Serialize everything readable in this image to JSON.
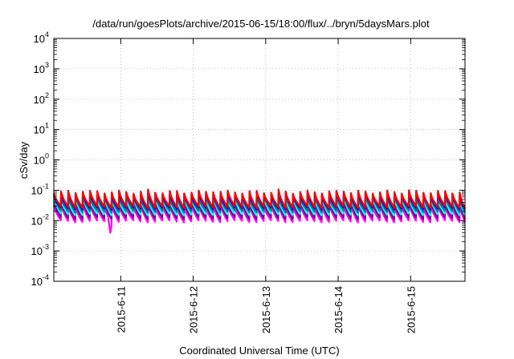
{
  "chart_data": {
    "type": "line",
    "title": "/data/run/goesPlots/archive/2015-06-15/18:00/flux/../bryn/5daysMars.plot",
    "xlabel": "Coordinated Universal Time (UTC)",
    "ylabel": "cSv/day",
    "xlim": [
      "2015-06-10T01:50",
      "2015-06-15T18:00"
    ],
    "ylim": [
      0.0001,
      10000
    ],
    "yscale": "log",
    "grid": true,
    "x_ticks": [
      {
        "label": "2015-6-11",
        "x": "2015-06-11T00:00"
      },
      {
        "label": "2015-6-12",
        "x": "2015-06-12T00:00"
      },
      {
        "label": "2015-6-13",
        "x": "2015-06-13T00:00"
      },
      {
        "label": "2015-6-14",
        "x": "2015-06-14T00:00"
      },
      {
        "label": "2015-6-15",
        "x": "2015-06-15T00:00"
      }
    ],
    "y_ticks": [
      {
        "value": 0.0001,
        "base": "10",
        "exp": "-4"
      },
      {
        "value": 0.001,
        "base": "10",
        "exp": "-3"
      },
      {
        "value": 0.01,
        "base": "10",
        "exp": "-2"
      },
      {
        "value": 0.1,
        "base": "10",
        "exp": "-1"
      },
      {
        "value": 1,
        "base": "10",
        "exp": "0"
      },
      {
        "value": 10,
        "base": "10",
        "exp": "1"
      },
      {
        "value": 100,
        "base": "10",
        "exp": "2"
      },
      {
        "value": 1000,
        "base": "10",
        "exp": "3"
      },
      {
        "value": 10000,
        "base": "10",
        "exp": "4"
      }
    ],
    "cycle_hours": 2.4,
    "series": [
      {
        "color": "#ff00ff",
        "peak": 0.032,
        "trough": 0.0095
      },
      {
        "color": "#800080",
        "peak": 0.04,
        "trough": 0.012
      },
      {
        "color": "#00ffff",
        "peak": 0.052,
        "trough": 0.016
      },
      {
        "color": "#008080",
        "peak": 0.062,
        "trough": 0.02
      },
      {
        "color": "#0000ff",
        "peak": 0.078,
        "trough": 0.025
      },
      {
        "color": "#ff0000",
        "peak": 0.088,
        "trough": 0.028
      }
    ],
    "dip": {
      "x": "2015-06-10T20:30",
      "value": 0.0035
    }
  }
}
